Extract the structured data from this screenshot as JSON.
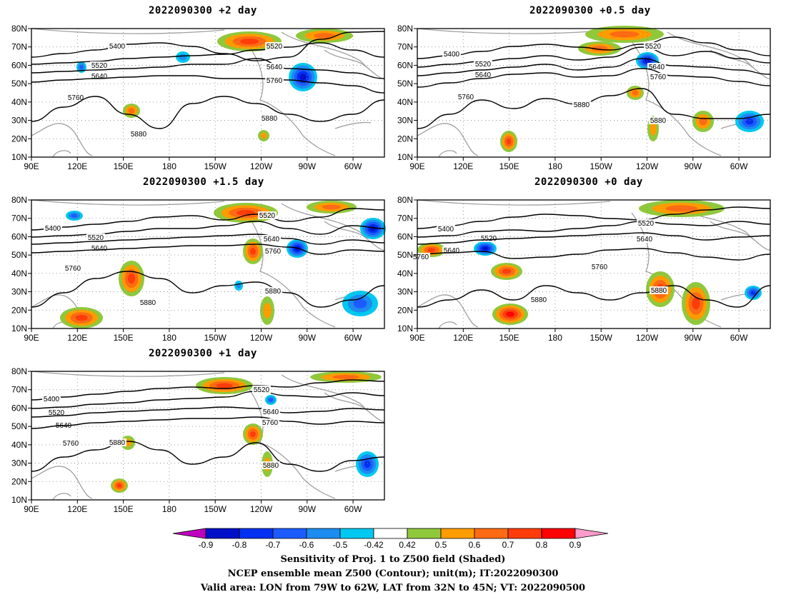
{
  "panels": [
    {
      "id": "p2",
      "title": "2022090300 +2 day"
    },
    {
      "id": "p05",
      "title": "2022090300 +0.5 day"
    },
    {
      "id": "p15",
      "title": "2022090300 +1.5 day"
    },
    {
      "id": "p0",
      "title": "2022090300 +0 day"
    },
    {
      "id": "p1",
      "title": "2022090300 +1 day"
    }
  ],
  "axes": {
    "x_ticks": [
      "90E",
      "120E",
      "150E",
      "180",
      "150W",
      "120W",
      "90W",
      "60W"
    ],
    "y_ticks": [
      "80N",
      "70N",
      "60N",
      "50N",
      "40N",
      "30N",
      "20N",
      "10N"
    ]
  },
  "contour_levels": [
    "5400",
    "5520",
    "5640",
    "5760",
    "5880"
  ],
  "colorbar": {
    "labels": [
      "-0.9",
      "-0.8",
      "-0.7",
      "-0.6",
      "-0.5",
      "-0.42",
      "0.42",
      "0.5",
      "0.6",
      "0.7",
      "0.8",
      "0.9"
    ],
    "colors": [
      "#c000c0",
      "#0010c8",
      "#0030f0",
      "#1c5cff",
      "#1c8cf0",
      "#00c8f0",
      "#ffffff",
      "#90c83c",
      "#ff9c00",
      "#ff6a14",
      "#ff3c0a",
      "#ff0000",
      "#ff9ccc"
    ]
  },
  "caption": {
    "line1": "Sensitivity of Proj. 1 to Z500 field (Shaded)",
    "line2": "NCEP ensemble mean Z500 (Contour); unit(m); IT:2022090300",
    "line3": "Valid area: LON from 79W to 62W, LAT from 32N to 45N; VT: 2022090500"
  }
}
